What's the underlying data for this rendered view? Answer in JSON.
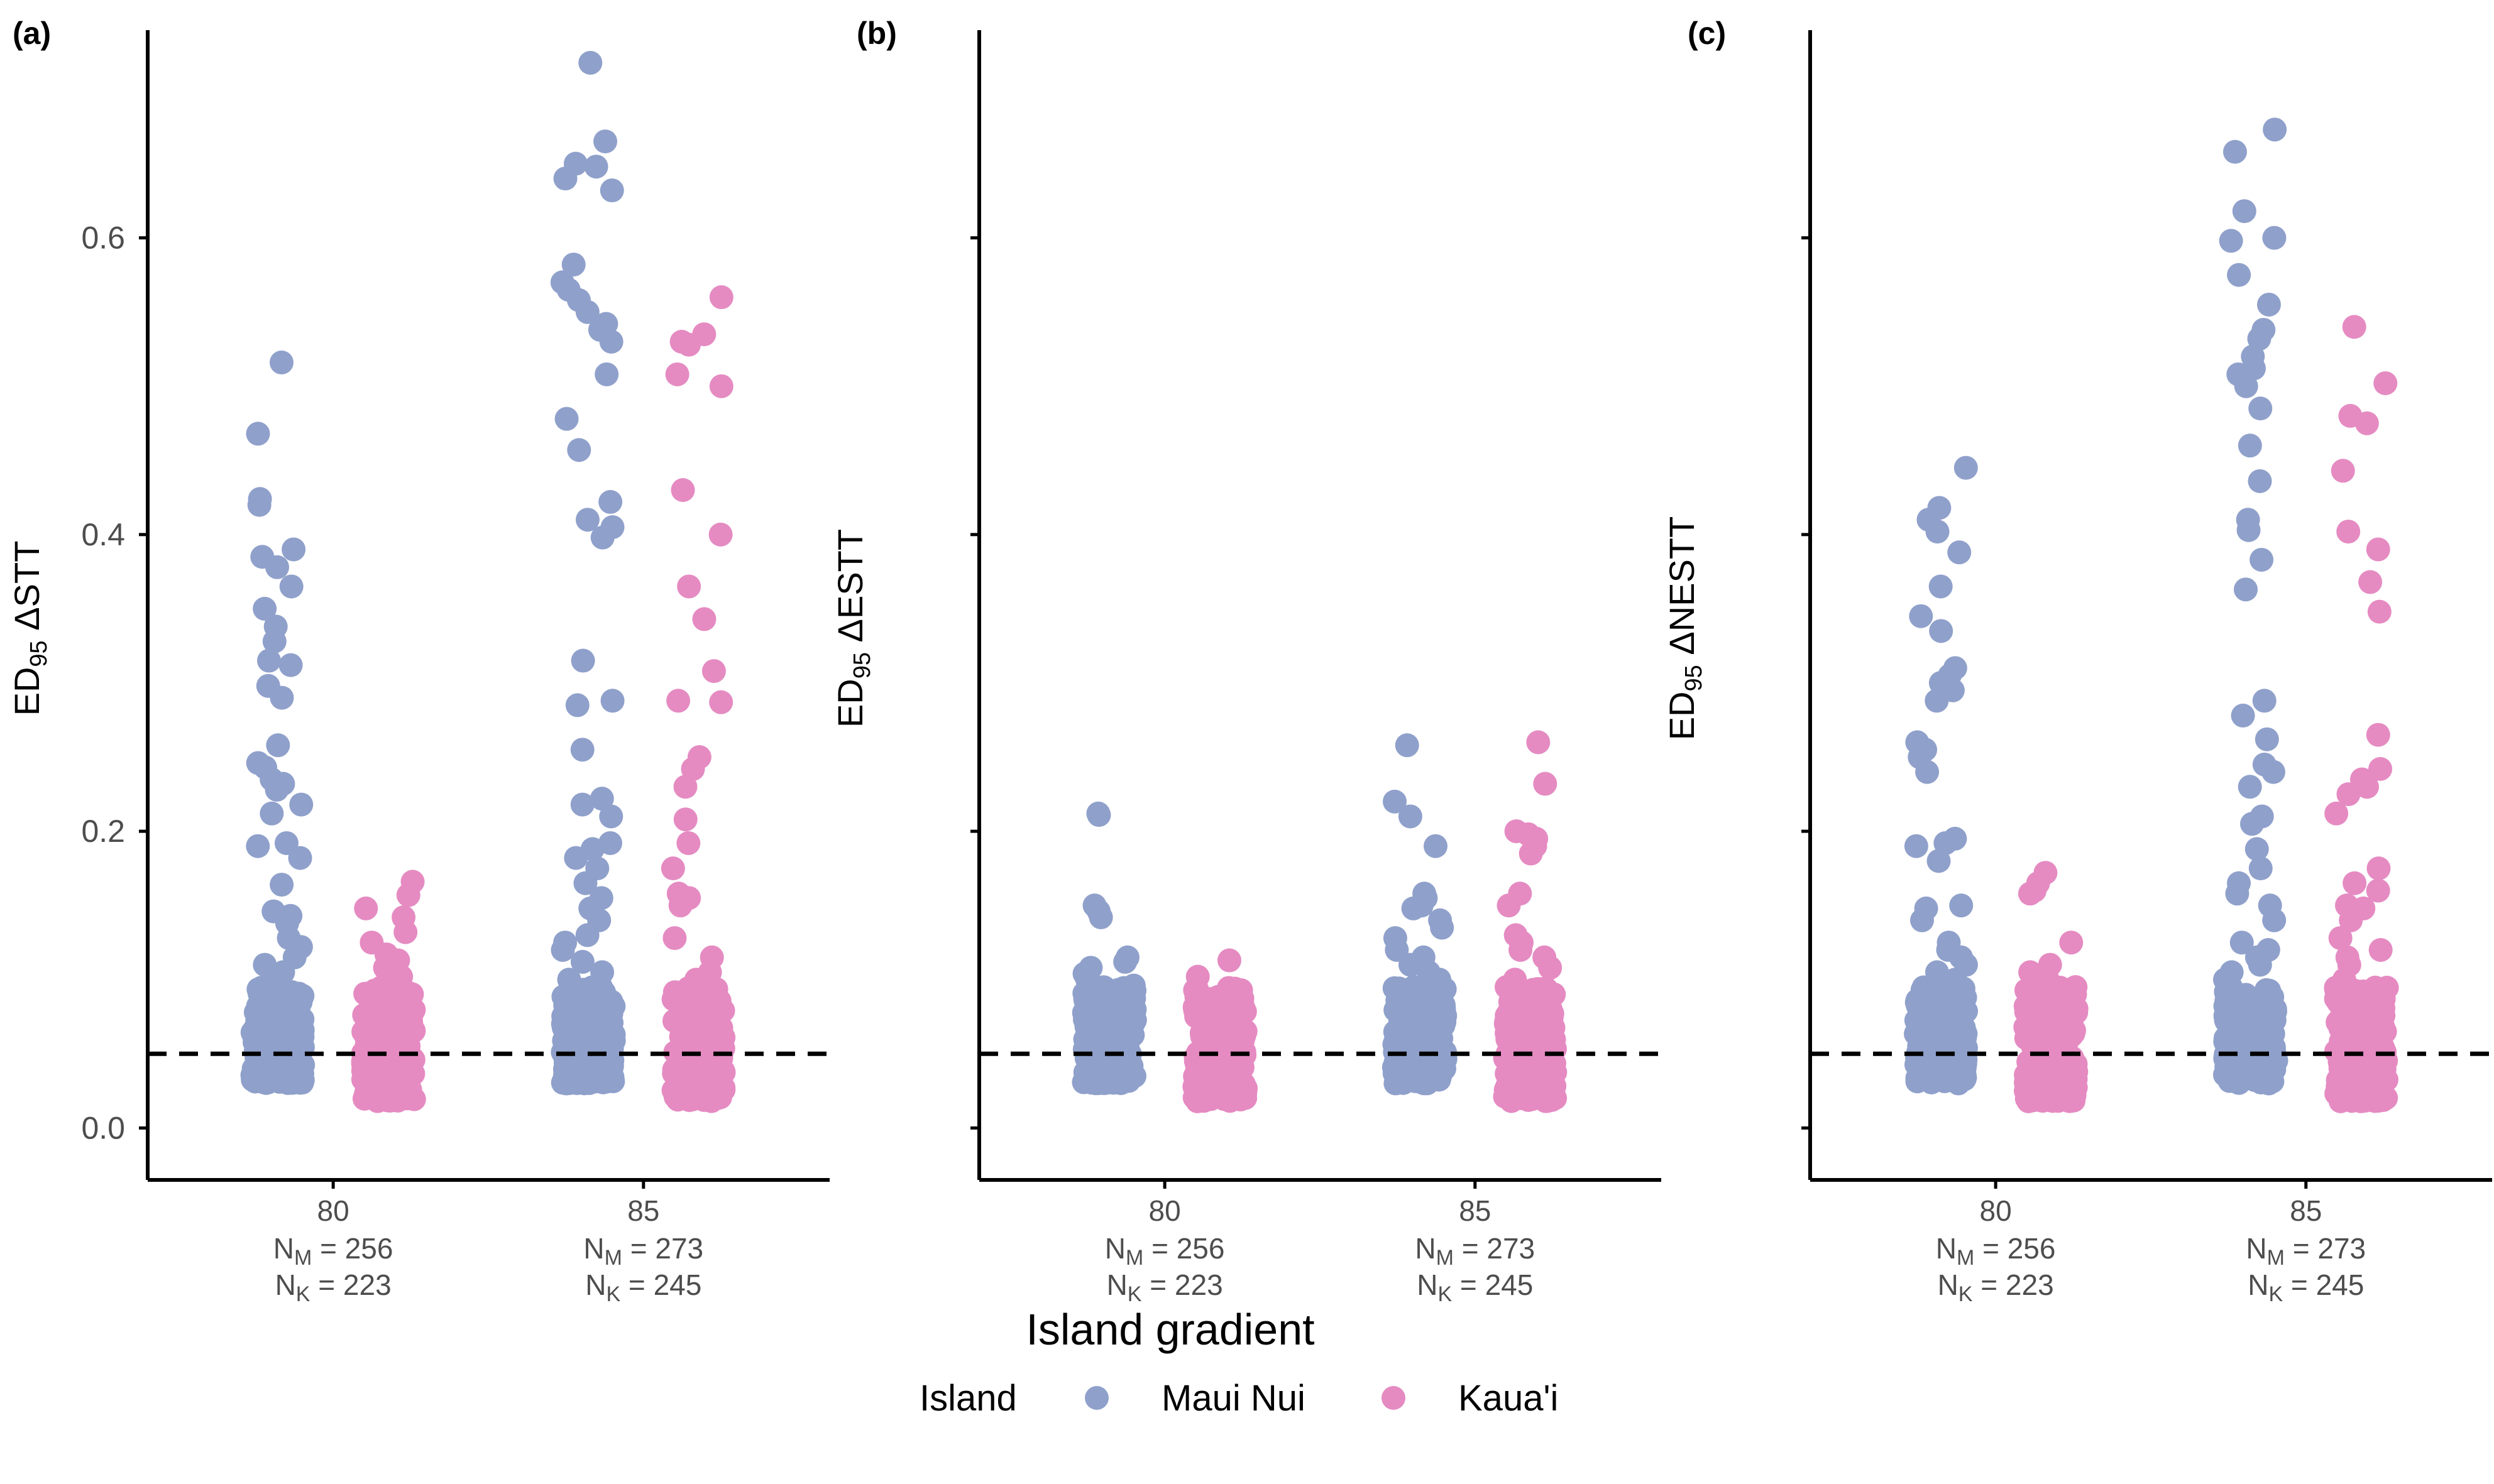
{
  "colors": {
    "maui": "#8FA0CB",
    "kauai": "#E58BC2",
    "axis": "#000000",
    "tick_text": "#4d4d4d"
  },
  "x_axis_label": "Island gradient",
  "legend": {
    "title": "Island",
    "items": [
      {
        "label": "Maui Nui",
        "color": "#8FA0CB"
      },
      {
        "label": "Kaua'i",
        "color": "#E58BC2"
      }
    ]
  },
  "chart_data": [
    {
      "panel": "(a)",
      "type": "scatter",
      "ylabel_main": "ED",
      "ylabel_sub": "95",
      "ylabel_rest": " ΔSTT",
      "ylim": [
        -0.035,
        0.74
      ],
      "yticks": [
        "0.0",
        "0.2",
        "0.4",
        "0.6"
      ],
      "reference_line": 0.05,
      "groups": [
        {
          "category": "80",
          "counts": [
            {
              "sym": "N",
              "sub": "M",
              "text": " = 256"
            },
            {
              "sym": "N",
              "sub": "K",
              "text": " = 223"
            }
          ],
          "series": [
            {
              "name": "Maui Nui",
              "values": [
                0.516,
                0.468,
                0.424,
                0.42,
                0.39,
                0.385,
                0.378,
                0.365,
                0.35,
                0.338,
                0.328,
                0.315,
                0.312,
                0.298,
                0.29,
                0.258,
                0.246,
                0.243,
                0.235,
                0.232,
                0.228,
                0.218,
                0.212,
                0.192,
                0.19,
                0.182,
                0.164,
                0.146,
                0.143,
                0.138,
                0.128,
                0.122,
                0.115,
                0.11,
                0.105,
                0.1,
                0.095
              ]
            },
            {
              "name": "Kaua'i",
              "values": [
                0.166,
                0.157,
                0.148,
                0.142,
                0.132,
                0.125,
                0.117,
                0.113,
                0.108,
                0.102,
                0.095,
                0.09
              ]
            }
          ]
        },
        {
          "category": "85",
          "counts": [
            {
              "sym": "N",
              "sub": "M",
              "text": " = 273"
            },
            {
              "sym": "N",
              "sub": "K",
              "text": " = 245"
            }
          ],
          "series": [
            {
              "name": "Maui Nui",
              "values": [
                0.718,
                0.665,
                0.65,
                0.648,
                0.64,
                0.632,
                0.582,
                0.57,
                0.565,
                0.558,
                0.55,
                0.542,
                0.538,
                0.53,
                0.508,
                0.478,
                0.457,
                0.422,
                0.41,
                0.405,
                0.398,
                0.315,
                0.288,
                0.285,
                0.255,
                0.222,
                0.218,
                0.21,
                0.192,
                0.188,
                0.182,
                0.175,
                0.165,
                0.155,
                0.148,
                0.14,
                0.13,
                0.125,
                0.12,
                0.112,
                0.105,
                0.1,
                0.095
              ]
            },
            {
              "name": "Kaua'i",
              "values": [
                0.56,
                0.535,
                0.53,
                0.528,
                0.508,
                0.5,
                0.43,
                0.4,
                0.365,
                0.343,
                0.308,
                0.288,
                0.287,
                0.25,
                0.242,
                0.23,
                0.208,
                0.192,
                0.175,
                0.158,
                0.155,
                0.15,
                0.128,
                0.115,
                0.105,
                0.1
              ]
            }
          ]
        }
      ]
    },
    {
      "panel": "(b)",
      "type": "scatter",
      "ylabel_main": "ED",
      "ylabel_sub": "95",
      "ylabel_rest": " ΔESTT",
      "ylim": [
        -0.035,
        0.74
      ],
      "yticks": [
        "0.0",
        "0.2",
        "0.4",
        "0.6"
      ],
      "reference_line": 0.05,
      "groups": [
        {
          "category": "80",
          "counts": [
            {
              "sym": "N",
              "sub": "M",
              "text": " = 256"
            },
            {
              "sym": "N",
              "sub": "K",
              "text": " = 223"
            }
          ],
          "series": [
            {
              "name": "Maui Nui",
              "values": [
                0.212,
                0.211,
                0.15,
                0.146,
                0.142,
                0.115,
                0.112,
                0.108,
                0.104,
                0.1,
                0.096
              ]
            },
            {
              "name": "Kaua'i",
              "values": [
                0.113,
                0.102,
                0.085,
                0.082,
                0.08
              ]
            }
          ]
        },
        {
          "category": "85",
          "counts": [
            {
              "sym": "N",
              "sub": "M",
              "text": " = 273"
            },
            {
              "sym": "N",
              "sub": "K",
              "text": " = 245"
            }
          ],
          "series": [
            {
              "name": "Maui Nui",
              "values": [
                0.258,
                0.22,
                0.21,
                0.19,
                0.158,
                0.155,
                0.15,
                0.148,
                0.14,
                0.135,
                0.128,
                0.12,
                0.115,
                0.11,
                0.105,
                0.1,
                0.095
              ]
            },
            {
              "name": "Kaua'i",
              "values": [
                0.26,
                0.232,
                0.2,
                0.198,
                0.195,
                0.19,
                0.185,
                0.158,
                0.15,
                0.13,
                0.125,
                0.12,
                0.115,
                0.108,
                0.1,
                0.095
              ]
            }
          ]
        }
      ]
    },
    {
      "panel": "(c)",
      "type": "scatter",
      "ylabel_main": "ED",
      "ylabel_sub": "95",
      "ylabel_rest": " ΔNESTT",
      "ylim": [
        -0.035,
        0.74
      ],
      "yticks": [
        "0.0",
        "0.2",
        "0.4",
        "0.6"
      ],
      "reference_line": 0.05,
      "groups": [
        {
          "category": "80",
          "counts": [
            {
              "sym": "N",
              "sub": "M",
              "text": " = 256"
            },
            {
              "sym": "N",
              "sub": "K",
              "text": " = 223"
            }
          ],
          "series": [
            {
              "name": "Maui Nui",
              "values": [
                0.445,
                0.418,
                0.41,
                0.402,
                0.388,
                0.365,
                0.345,
                0.335,
                0.31,
                0.305,
                0.3,
                0.295,
                0.288,
                0.26,
                0.255,
                0.25,
                0.24,
                0.195,
                0.192,
                0.19,
                0.18,
                0.15,
                0.148,
                0.14,
                0.125,
                0.12,
                0.115,
                0.11,
                0.105,
                0.1,
                0.095
              ]
            },
            {
              "name": "Kaua'i",
              "values": [
                0.172,
                0.165,
                0.16,
                0.158,
                0.125,
                0.11,
                0.105,
                0.1,
                0.095,
                0.09
              ]
            }
          ]
        },
        {
          "category": "85",
          "counts": [
            {
              "sym": "N",
              "sub": "M",
              "text": " = 273"
            },
            {
              "sym": "N",
              "sub": "K",
              "text": " = 245"
            }
          ],
          "series": [
            {
              "name": "Maui Nui",
              "values": [
                0.673,
                0.658,
                0.618,
                0.6,
                0.598,
                0.575,
                0.555,
                0.538,
                0.532,
                0.52,
                0.512,
                0.508,
                0.5,
                0.485,
                0.46,
                0.436,
                0.41,
                0.403,
                0.383,
                0.363,
                0.288,
                0.278,
                0.262,
                0.245,
                0.24,
                0.23,
                0.21,
                0.205,
                0.188,
                0.175,
                0.165,
                0.158,
                0.15,
                0.14,
                0.125,
                0.12,
                0.115,
                0.11,
                0.105,
                0.1
              ]
            },
            {
              "name": "Kaua'i",
              "values": [
                0.54,
                0.502,
                0.48,
                0.475,
                0.443,
                0.402,
                0.39,
                0.368,
                0.348,
                0.265,
                0.242,
                0.235,
                0.23,
                0.225,
                0.212,
                0.175,
                0.165,
                0.16,
                0.15,
                0.148,
                0.14,
                0.128,
                0.12,
                0.115,
                0.11,
                0.1
              ]
            }
          ]
        }
      ]
    }
  ]
}
